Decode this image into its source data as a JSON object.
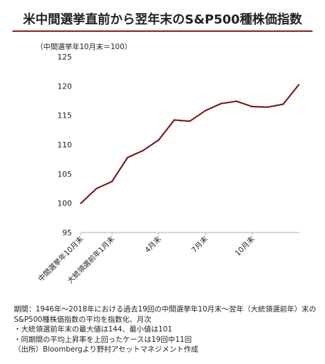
{
  "header": {
    "title": "米中間選挙直前から翌年末のS&P500種株価指数",
    "unit_note": "（中間選挙年10月末＝100）"
  },
  "chart_data": {
    "type": "line",
    "title": "米中間選挙直前から翌年末のS&P500種株価指数",
    "ylabel": "（中間選挙年10月末＝100）",
    "ylim": [
      95,
      125
    ],
    "yticks": [
      95,
      100,
      105,
      110,
      115,
      120,
      125
    ],
    "grid": false,
    "x_tick_labels": [
      {
        "index": 0,
        "label": "中間選挙年10月末"
      },
      {
        "index": 2,
        "label": "大統領選前年1月末"
      },
      {
        "index": 5,
        "label": "4月末"
      },
      {
        "index": 8,
        "label": "7月末"
      },
      {
        "index": 11,
        "label": "10月末"
      }
    ],
    "series": [
      {
        "color": "#7b1a1a",
        "values": [
          100.0,
          102.5,
          103.7,
          107.8,
          109.0,
          110.8,
          114.2,
          114.0,
          115.8,
          117.0,
          117.4,
          116.5,
          116.4,
          116.9,
          120.2
        ]
      }
    ]
  },
  "notes": [
    "期間：1946年～2018年における過去19回の中間選挙年10月末～翌年（大統領選前年）末のS&P500種株価指数の平均を指数化、月次",
    "・大統領選前年末の最大値は144、最小値は101",
    "・同期間の平均上昇率を上回ったケースは19回中11回",
    "（出所）Bloombergより野村アセットマネジメント作成"
  ]
}
